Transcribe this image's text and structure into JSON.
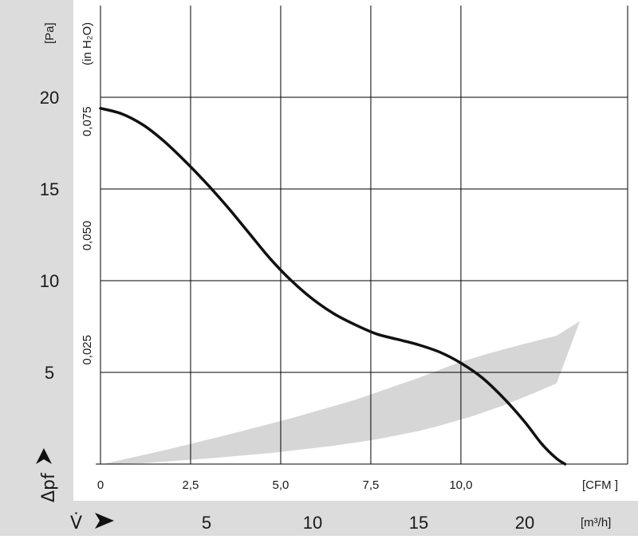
{
  "chart_data": {
    "type": "line",
    "title": "",
    "x_primary": {
      "unit": "[m³/h]",
      "symbol": "V̇",
      "range": [
        0,
        25
      ],
      "ticks": [
        5,
        10,
        15,
        20
      ]
    },
    "x_secondary": {
      "unit": "[CFM ]",
      "range": [
        0,
        14.71
      ],
      "ticks": [
        "0",
        "2,5",
        "5,0",
        "7,5",
        "10,0"
      ],
      "tick_values": [
        0,
        2.5,
        5.0,
        7.5,
        10.0
      ]
    },
    "y_primary": {
      "unit": "[Pa]",
      "symbol": "Δpf",
      "range": [
        0,
        25
      ],
      "ticks": [
        5,
        10,
        15,
        20
      ]
    },
    "y_secondary": {
      "unit": "(in H₂O)",
      "range": [
        0,
        0.1004
      ],
      "ticks": [
        "0,025",
        "0,050",
        "0,075"
      ],
      "tick_values": [
        0.025,
        0.05,
        0.075
      ]
    },
    "grid": true,
    "series": [
      {
        "x": [
          0,
          1,
          2,
          3,
          4,
          5,
          6,
          7,
          8,
          9,
          10,
          11,
          12,
          13,
          14,
          15,
          16,
          17,
          18,
          19,
          20,
          20.8,
          21.5,
          21.9
        ],
        "y": [
          19.4,
          19.1,
          18.5,
          17.6,
          16.5,
          15.3,
          14.0,
          12.6,
          11.2,
          10.0,
          9.0,
          8.2,
          7.6,
          7.1,
          6.8,
          6.5,
          6.1,
          5.5,
          4.7,
          3.6,
          2.3,
          1.1,
          0.3,
          0
        ]
      }
    ],
    "operating_region": {
      "x": [
        0.1,
        3,
        6,
        9,
        12,
        15,
        16.8,
        18.2,
        19.8,
        21.5,
        22.6,
        21.5,
        20.5,
        19,
        17.5,
        16,
        15,
        13,
        11,
        8,
        5,
        2,
        0.1
      ],
      "y": [
        0,
        0.75,
        1.6,
        2.5,
        3.5,
        4.7,
        5.5,
        6.0,
        6.5,
        7.0,
        7.8,
        4.4,
        3.9,
        3.2,
        2.6,
        2.1,
        1.8,
        1.35,
        1.0,
        0.6,
        0.3,
        0.05,
        0
      ]
    }
  }
}
